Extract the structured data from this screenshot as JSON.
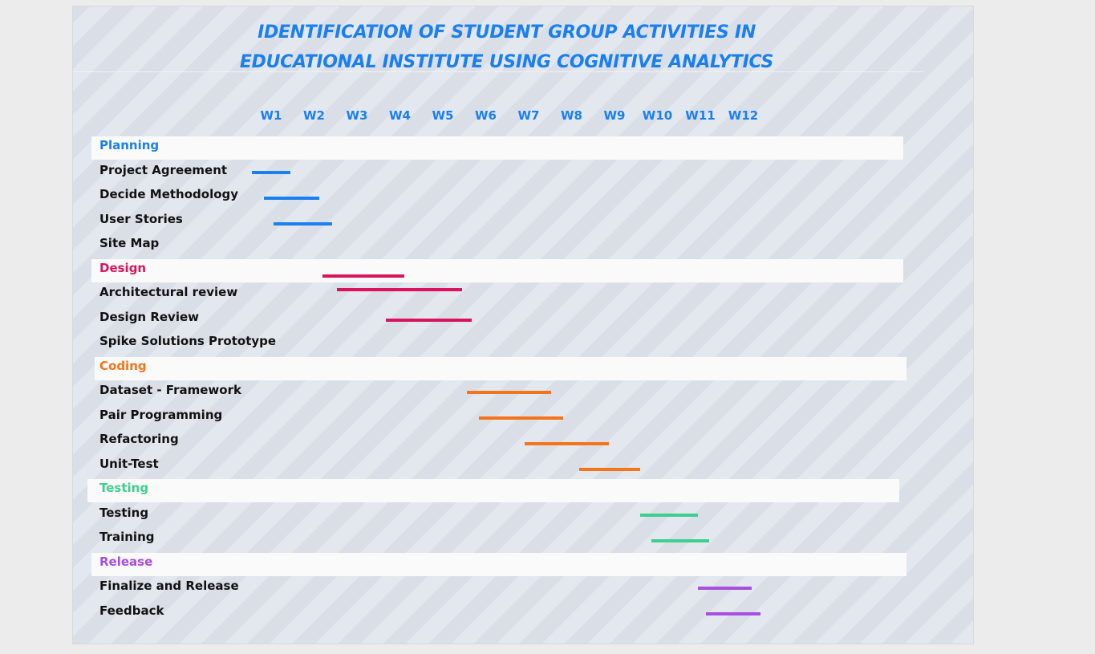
{
  "title_lines": [
    "IDENTIFICATION OF STUDENT GROUP ACTIVITIES IN",
    "EDUCATIONAL INSTITUTE USING COGNITIVE ANALYTICS"
  ],
  "chart_data": {
    "type": "gantt",
    "title": "IDENTIFICATION OF STUDENT GROUP ACTIVITIES IN EDUCATIONAL INSTITUTE USING COGNITIVE ANALYTICS",
    "x_ticks": [
      "W1",
      "W2",
      "W3",
      "W4",
      "W5",
      "W6",
      "W7",
      "W8",
      "W9",
      "W10",
      "W11",
      "W12"
    ],
    "x_unit": "week",
    "grid": false,
    "phases": [
      {
        "name": "Planning",
        "color": "#1a7ff0",
        "tasks": [
          {
            "name": "Project Agreement",
            "start": 0.55,
            "end": 1.45
          },
          {
            "name": "Decide Methodology",
            "start": 0.83,
            "end": 2.13
          },
          {
            "name": "User Stories",
            "start": 1.06,
            "end": 2.43
          },
          {
            "name": "Site Map",
            "start": null,
            "end": null
          }
        ]
      },
      {
        "name": "Design",
        "color": "#d6155c",
        "tasks": [
          {
            "name": "Architectural review",
            "start": 2.2,
            "end": 4.1,
            "extra_bar": {
              "start": 2.54,
              "end": 5.45
            }
          },
          {
            "name": "Design Review",
            "start": 3.67,
            "end": 5.67
          },
          {
            "name": "Spike Solutions Prototype",
            "start": null,
            "end": null
          }
        ]
      },
      {
        "name": "Coding",
        "color": "#f5731a",
        "tasks": [
          {
            "name": "Dataset - Framework",
            "start": 5.56,
            "end": 7.52
          },
          {
            "name": "Pair Programming",
            "start": 5.84,
            "end": 7.8
          },
          {
            "name": "Refactoring",
            "start": 6.9,
            "end": 8.86
          },
          {
            "name": "Unit-Test",
            "start": 8.18,
            "end": 9.6
          }
        ]
      },
      {
        "name": "Testing",
        "color": "#3ecf8e",
        "tasks": [
          {
            "name": "Testing",
            "start": 9.6,
            "end": 10.94
          },
          {
            "name": "Training",
            "start": 9.86,
            "end": 11.2
          }
        ]
      },
      {
        "name": "Release",
        "color": "#a64fe0",
        "tasks": [
          {
            "name": "Finalize and Release",
            "start": 10.94,
            "end": 12.2
          },
          {
            "name": "Feedback",
            "start": 11.14,
            "end": 12.4
          }
        ]
      }
    ]
  }
}
